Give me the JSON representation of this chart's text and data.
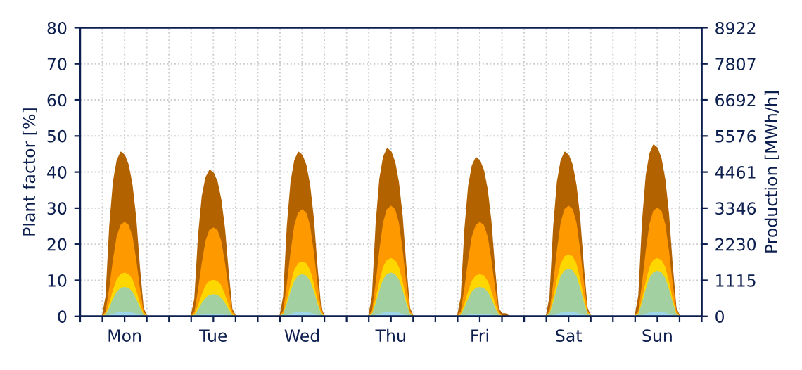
{
  "chart_data": {
    "type": "area",
    "ylabel": "Plant factor [%]",
    "y2label": "Production [MWh/h]",
    "categories": [
      null,
      null,
      null,
      null,
      null,
      null,
      null,
      null,
      null,
      null,
      null,
      null,
      "Mon",
      null,
      null,
      null,
      null,
      null,
      null,
      null,
      null,
      null,
      null,
      null,
      null,
      null,
      null,
      null,
      null,
      null,
      null,
      null,
      null,
      null,
      null,
      null,
      "Tue",
      null,
      null,
      null,
      null,
      null,
      null,
      null,
      null,
      null,
      null,
      null,
      null,
      null,
      null,
      null,
      null,
      null,
      null,
      null,
      null,
      null,
      null,
      null,
      "Wed",
      null,
      null,
      null,
      null,
      null,
      null,
      null,
      null,
      null,
      null,
      null,
      null,
      null,
      null,
      null,
      null,
      null,
      null,
      null,
      null,
      null,
      null,
      null,
      "Thu",
      null,
      null,
      null,
      null,
      null,
      null,
      null,
      null,
      null,
      null,
      null,
      null,
      null,
      null,
      null,
      null,
      null,
      null,
      null,
      null,
      null,
      null,
      null,
      "Fri",
      null,
      null,
      null,
      null,
      null,
      null,
      null,
      null,
      null,
      null,
      null,
      null,
      null,
      null,
      null,
      null,
      null,
      null,
      null,
      null,
      null,
      null,
      null,
      "Sat",
      null,
      null,
      null,
      null,
      null,
      null,
      null,
      null,
      null,
      null,
      null,
      null,
      null,
      null,
      null,
      null,
      null,
      null,
      null,
      null,
      null,
      null,
      null,
      "Sun",
      null,
      null,
      null,
      null,
      null,
      null,
      null,
      null,
      null,
      null,
      null
    ],
    "series": [
      {
        "color": "#b36200",
        "values": [
          0,
          0,
          0,
          0,
          0,
          0,
          0,
          5.5,
          25,
          37.3,
          43.2,
          45.5,
          44.6,
          41.9,
          36.4,
          27.3,
          13.7,
          2.3,
          0,
          0,
          0,
          0,
          0,
          0,
          0,
          0,
          0,
          0,
          0,
          0,
          0,
          4.9,
          22.3,
          33.2,
          38.5,
          40.5,
          39.7,
          37.3,
          32.4,
          24.3,
          12.2,
          2,
          0,
          0,
          0,
          0,
          0,
          0,
          0,
          0,
          0,
          0,
          0,
          0,
          0,
          5.5,
          25,
          37.3,
          43.2,
          45.5,
          44.6,
          41.9,
          36.4,
          27.3,
          13.7,
          2.3,
          0,
          0,
          0,
          0,
          0,
          0,
          0,
          0,
          0,
          0,
          0,
          0,
          0,
          5.6,
          25.6,
          38.1,
          44.2,
          46.5,
          45.6,
          42.8,
          37.2,
          27.9,
          14,
          2.3,
          0,
          0,
          0,
          0,
          0,
          0,
          0,
          0,
          0,
          0,
          0,
          0,
          0,
          5.3,
          24.2,
          36.1,
          41.8,
          44,
          43.1,
          40.5,
          35.2,
          26.4,
          13.2,
          2.2,
          0.7,
          0.7,
          0,
          0,
          0,
          0,
          0,
          0,
          0,
          0,
          0,
          0,
          0,
          5.5,
          25,
          37.3,
          43.2,
          45.5,
          44.6,
          41.9,
          36.4,
          27.3,
          13.7,
          2.3,
          0,
          0,
          0,
          0,
          0,
          0,
          0,
          0,
          0,
          0,
          0,
          0,
          0,
          5.7,
          26.1,
          39,
          45.1,
          47.5,
          46.6,
          43.7,
          38,
          28.5,
          14.3,
          2.4,
          0,
          0,
          0,
          0,
          0,
          0
        ]
      },
      {
        "color": "#ff9900",
        "values": [
          0,
          0,
          0,
          0,
          0,
          0,
          0,
          1.3,
          7.8,
          15.6,
          22.1,
          25.2,
          26,
          25.2,
          22.1,
          15.6,
          7.8,
          1.3,
          0,
          0,
          0,
          0,
          0,
          0,
          0,
          0,
          0,
          0,
          0,
          0,
          0,
          1.2,
          7.4,
          14.7,
          20.8,
          23.8,
          24.5,
          23.8,
          20.8,
          14.7,
          7.4,
          1.2,
          0,
          0,
          0,
          0,
          0,
          0,
          0,
          0,
          0,
          0,
          0,
          0,
          0,
          1.5,
          8.9,
          17.7,
          25.1,
          28.6,
          29.5,
          28.6,
          25.1,
          17.7,
          8.9,
          1.5,
          0,
          0,
          0,
          0,
          0,
          0,
          0,
          0,
          0,
          0,
          0,
          0,
          0,
          1.5,
          9.2,
          18.3,
          25.9,
          29.6,
          30.5,
          29.6,
          25.9,
          18.3,
          9.2,
          1.5,
          0,
          0,
          0,
          0,
          0,
          0,
          0,
          0,
          0,
          0,
          0,
          0,
          0,
          1.3,
          7.8,
          15.6,
          22.1,
          25.2,
          26,
          25.2,
          22.1,
          15.6,
          7.8,
          1.3,
          0,
          0,
          0,
          0,
          0,
          0,
          0,
          0,
          0,
          0,
          0,
          0,
          0,
          1.5,
          9.2,
          18.3,
          25.9,
          29.6,
          30.5,
          29.6,
          25.9,
          18.3,
          9.2,
          1.5,
          0,
          0,
          0,
          0,
          0,
          0,
          0,
          0,
          0,
          0,
          0,
          0,
          0,
          1.5,
          9,
          18,
          25.5,
          29.1,
          30,
          29.1,
          25.5,
          18,
          9,
          1.5,
          0,
          0,
          0,
          0,
          0,
          0
        ]
      },
      {
        "color": "#ffd700",
        "values": [
          0,
          0,
          0,
          0,
          0,
          0,
          0,
          0.6,
          3.6,
          7.2,
          10.2,
          11.6,
          12,
          11.6,
          10.2,
          7.2,
          3.6,
          0.6,
          0,
          0,
          0,
          0,
          0,
          0,
          0,
          0,
          0,
          0,
          0,
          0,
          0,
          0.5,
          3,
          6,
          8.5,
          9.7,
          10,
          9.7,
          8.5,
          6,
          3,
          0.5,
          0,
          0,
          0,
          0,
          0,
          0,
          0,
          0,
          0,
          0,
          0,
          0,
          0,
          0.8,
          4.5,
          9,
          12.8,
          14.6,
          15,
          14.6,
          12.8,
          9,
          4.5,
          0.8,
          0,
          0,
          0,
          0,
          0,
          0,
          0,
          0,
          0,
          0,
          0,
          0,
          0,
          0.8,
          4.8,
          9.6,
          13.6,
          15.5,
          16,
          15.5,
          13.6,
          9.6,
          4.8,
          0.8,
          0,
          0,
          0,
          0,
          0,
          0,
          0,
          0,
          0,
          0,
          0,
          0,
          0,
          0.6,
          3.5,
          6.9,
          9.8,
          11.2,
          11.5,
          11.2,
          9.8,
          6.9,
          3.5,
          0.6,
          0,
          0,
          0,
          0,
          0,
          0,
          0,
          0,
          0,
          0,
          0,
          0,
          0,
          0.9,
          5.1,
          10.2,
          14.5,
          16.5,
          17,
          16.5,
          14.5,
          10.2,
          5.1,
          0.9,
          0,
          0,
          0,
          0,
          0,
          0,
          0,
          0,
          0,
          0,
          0,
          0,
          0,
          0.8,
          4.8,
          9.6,
          13.6,
          15.5,
          16,
          15.5,
          13.6,
          9.6,
          4.8,
          0.8,
          0,
          0,
          0,
          0,
          0,
          0
        ]
      },
      {
        "color": "#a3d0a0",
        "values": [
          0,
          0,
          0,
          0,
          0,
          0,
          0,
          0.4,
          2.4,
          4.8,
          6.8,
          7.8,
          8,
          7.8,
          6.8,
          4.8,
          2.4,
          0.4,
          0,
          0,
          0,
          0,
          0,
          0,
          0,
          0,
          0,
          0,
          0,
          0,
          0,
          0.3,
          1.8,
          3.6,
          5.1,
          5.8,
          6,
          5.8,
          5.1,
          3.6,
          1.8,
          0.3,
          0,
          0,
          0,
          0,
          0,
          0,
          0,
          0,
          0,
          0,
          0,
          0,
          0,
          0.6,
          3.5,
          6.9,
          9.8,
          11.2,
          11.5,
          11.2,
          9.8,
          6.9,
          3.5,
          0.6,
          0,
          0,
          0,
          0,
          0,
          0,
          0,
          0,
          0,
          0,
          0,
          0,
          0,
          0.6,
          3.6,
          7.2,
          10.2,
          11.6,
          12,
          11.6,
          10.2,
          7.2,
          3.6,
          0.6,
          0,
          0,
          0,
          0,
          0,
          0,
          0,
          0,
          0,
          0,
          0,
          0,
          0,
          0.4,
          2.4,
          4.8,
          6.8,
          7.8,
          8,
          7.8,
          6.8,
          4.8,
          2.4,
          0.4,
          0,
          0,
          0,
          0,
          0,
          0,
          0,
          0,
          0,
          0,
          0,
          0,
          0,
          0.7,
          3.9,
          7.8,
          11.1,
          12.6,
          13,
          12.6,
          11.1,
          7.8,
          3.9,
          0.7,
          0,
          0,
          0,
          0,
          0,
          0,
          0,
          0,
          0,
          0,
          0,
          0,
          0,
          0.6,
          3.8,
          7.5,
          10.6,
          12.1,
          12.5,
          12.1,
          10.6,
          7.5,
          3.8,
          0.6,
          0,
          0,
          0,
          0,
          0,
          0
        ]
      },
      {
        "color": "#9dd6e8",
        "values": [
          0,
          0,
          0,
          0,
          0,
          0,
          0,
          0,
          0.3,
          0.6,
          0.9,
          1,
          1,
          1,
          0.9,
          0.6,
          0.3,
          0,
          0,
          0,
          0,
          0,
          0,
          0,
          0,
          0,
          0,
          0,
          0,
          0,
          0,
          0,
          0.2,
          0.3,
          0.5,
          0.5,
          0.5,
          0.5,
          0.5,
          0.3,
          0.2,
          0,
          0,
          0,
          0,
          0,
          0,
          0,
          0,
          0,
          0,
          0,
          0,
          0,
          0,
          0,
          0.3,
          0.6,
          0.9,
          1,
          1,
          1,
          0.9,
          0.6,
          0.3,
          0,
          0,
          0,
          0,
          0,
          0,
          0,
          0,
          0,
          0,
          0,
          0,
          0,
          0,
          0,
          0.3,
          0.6,
          0.9,
          1,
          1,
          1,
          0.9,
          0.6,
          0.3,
          0,
          0,
          0,
          0,
          0,
          0,
          0,
          0,
          0,
          0,
          0,
          0,
          0,
          0,
          0,
          0.2,
          0.3,
          0.5,
          0.5,
          0.5,
          0.5,
          0.5,
          0.3,
          0.2,
          0,
          0,
          0,
          0,
          0,
          0,
          0,
          0,
          0,
          0,
          0,
          0,
          0,
          0,
          0,
          0.3,
          0.6,
          0.9,
          1,
          1,
          1,
          0.9,
          0.6,
          0.3,
          0,
          0,
          0,
          0,
          0,
          0,
          0,
          0,
          0,
          0,
          0,
          0,
          0,
          0,
          0,
          0.3,
          0.6,
          0.9,
          1,
          1,
          1,
          0.9,
          0.6,
          0.3,
          0,
          0,
          0,
          0,
          0,
          0,
          0
        ]
      }
    ],
    "ylim": [
      0,
      80
    ],
    "yticks": [
      0,
      10,
      20,
      30,
      40,
      50,
      60,
      70,
      80
    ],
    "y2lim": [
      0,
      8922
    ],
    "y2ticks": [
      0,
      1115,
      2230,
      3346,
      4461,
      5576,
      6692,
      7807,
      8922
    ],
    "grid": true
  }
}
